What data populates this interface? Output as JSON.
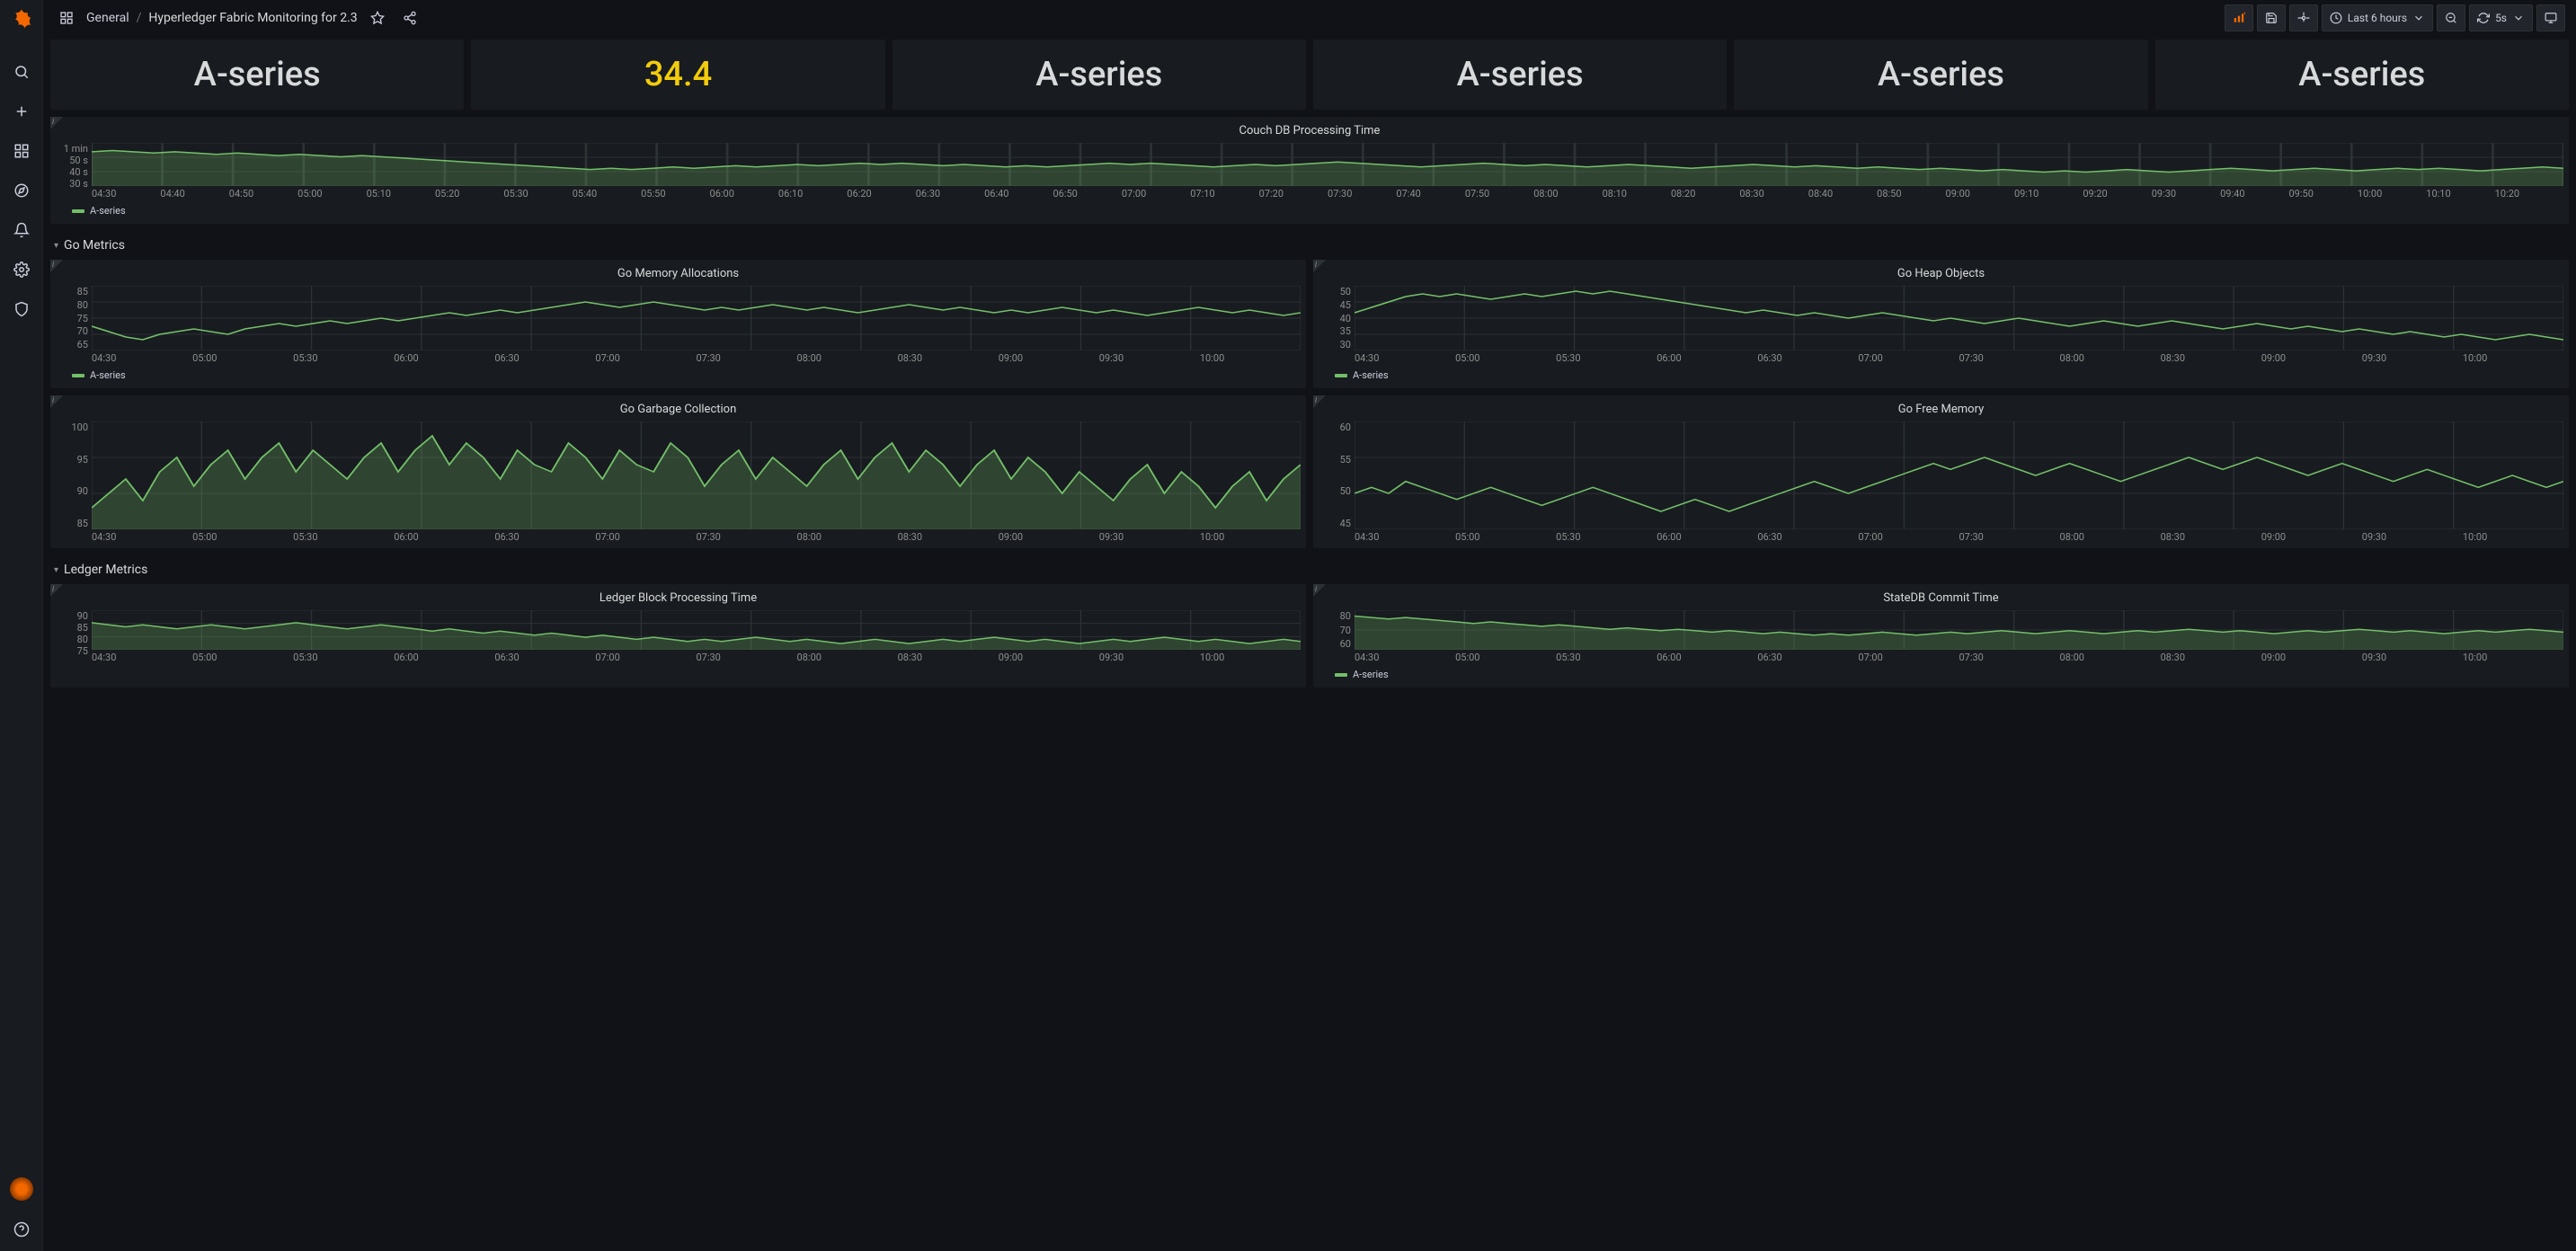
{
  "colors": {
    "series": "#73bf69",
    "seriesArea": "rgba(115,191,105,0.25)",
    "warn": "#f2cc0c"
  },
  "breadcrumb": {
    "folder": "General",
    "title": "Hyperledger Fabric Monitoring for 2.3"
  },
  "topbar": {
    "timeRange": "Last 6 hours",
    "refresh": "5s"
  },
  "stats": [
    {
      "value": "A-series",
      "warn": false
    },
    {
      "value": "34.4",
      "warn": true
    },
    {
      "value": "A-series",
      "warn": false
    },
    {
      "value": "A-series",
      "warn": false
    },
    {
      "value": "A-series",
      "warn": false
    },
    {
      "value": "A-series",
      "warn": false
    }
  ],
  "rowHeaders": {
    "go": "Go Metrics",
    "ledger": "Ledger Metrics"
  },
  "legend": {
    "label": "A-series"
  },
  "charts": {
    "couchdb": {
      "title": "Couch DB Processing Time",
      "height": 48,
      "yTicks": [
        "1 min",
        "50 s",
        "40 s",
        "30 s"
      ],
      "xTicks": [
        "04:30",
        "04:40",
        "04:50",
        "05:00",
        "05:10",
        "05:20",
        "05:30",
        "05:40",
        "05:50",
        "06:00",
        "06:10",
        "06:20",
        "06:30",
        "06:40",
        "06:50",
        "07:00",
        "07:10",
        "07:20",
        "07:30",
        "07:40",
        "07:50",
        "08:00",
        "08:10",
        "08:20",
        "08:30",
        "08:40",
        "08:50",
        "09:00",
        "09:10",
        "09:20",
        "09:30",
        "09:40",
        "09:50",
        "10:00",
        "10:10",
        "10:20"
      ],
      "yRange": [
        28,
        62
      ],
      "values": [
        55,
        56,
        55,
        54,
        55,
        54,
        53,
        54,
        53,
        52,
        53,
        52,
        51,
        52,
        51,
        50,
        49,
        48,
        47,
        46,
        45,
        44,
        43,
        42,
        41,
        42,
        41,
        42,
        43,
        42,
        43,
        44,
        43,
        44,
        45,
        44,
        45,
        46,
        45,
        46,
        45,
        44,
        45,
        44,
        43,
        44,
        43,
        44,
        45,
        46,
        45,
        46,
        45,
        44,
        43,
        44,
        45,
        44,
        45,
        46,
        47,
        46,
        45,
        44,
        43,
        44,
        45,
        46,
        45,
        44,
        45,
        44,
        43,
        44,
        45,
        44,
        43,
        42,
        43,
        44,
        45,
        44,
        43,
        44,
        43,
        42,
        43,
        42,
        41,
        42,
        41,
        40,
        41,
        40,
        39,
        40,
        39,
        40,
        41,
        40,
        39,
        40,
        41,
        42,
        41,
        40,
        41,
        42,
        41,
        40,
        41,
        42,
        41,
        42,
        41,
        40,
        41,
        42,
        43,
        42
      ],
      "area": true
    },
    "goMemAlloc": {
      "title": "Go Memory Allocations",
      "height": 72,
      "yTicks": [
        "85",
        "80",
        "75",
        "70",
        "65"
      ],
      "xTicks": [
        "04:30",
        "05:00",
        "05:30",
        "06:00",
        "06:30",
        "07:00",
        "07:30",
        "08:00",
        "08:30",
        "09:00",
        "09:30",
        "10:00"
      ],
      "yRange": [
        63,
        87
      ],
      "values": [
        72,
        70,
        68,
        67,
        69,
        70,
        71,
        70,
        69,
        71,
        72,
        73,
        72,
        73,
        74,
        73,
        74,
        75,
        74,
        75,
        76,
        77,
        76,
        77,
        78,
        77,
        78,
        79,
        80,
        81,
        80,
        79,
        80,
        81,
        80,
        79,
        78,
        79,
        78,
        79,
        80,
        79,
        78,
        79,
        78,
        77,
        78,
        79,
        80,
        79,
        78,
        79,
        78,
        77,
        78,
        77,
        78,
        79,
        78,
        77,
        78,
        77,
        76,
        77,
        78,
        79,
        78,
        77,
        78,
        77,
        76,
        77
      ],
      "area": false
    },
    "goHeap": {
      "title": "Go Heap Objects",
      "height": 72,
      "yTicks": [
        "50",
        "45",
        "40",
        "35",
        "30"
      ],
      "xTicks": [
        "04:30",
        "05:00",
        "05:30",
        "06:00",
        "06:30",
        "07:00",
        "07:30",
        "08:00",
        "08:30",
        "09:00",
        "09:30",
        "10:00"
      ],
      "yRange": [
        28,
        52
      ],
      "values": [
        42,
        44,
        46,
        48,
        49,
        48,
        49,
        48,
        47,
        48,
        49,
        48,
        49,
        50,
        49,
        50,
        49,
        48,
        47,
        46,
        45,
        44,
        43,
        42,
        43,
        42,
        41,
        42,
        41,
        40,
        41,
        42,
        41,
        40,
        39,
        40,
        39,
        38,
        39,
        40,
        39,
        38,
        37,
        38,
        39,
        38,
        37,
        38,
        39,
        38,
        37,
        36,
        37,
        38,
        37,
        36,
        37,
        36,
        35,
        36,
        35,
        34,
        35,
        34,
        33,
        34,
        33,
        32,
        33,
        34,
        33,
        32
      ],
      "area": false
    },
    "goGC": {
      "title": "Go Garbage Collection",
      "height": 120,
      "yTicks": [
        "100",
        "95",
        "90",
        "85"
      ],
      "xTicks": [
        "04:30",
        "05:00",
        "05:30",
        "06:00",
        "06:30",
        "07:00",
        "07:30",
        "08:00",
        "08:30",
        "09:00",
        "09:30",
        "10:00"
      ],
      "yRange": [
        85,
        100
      ],
      "values": [
        88,
        90,
        92,
        89,
        93,
        95,
        91,
        94,
        96,
        92,
        95,
        97,
        93,
        96,
        94,
        92,
        95,
        97,
        93,
        96,
        98,
        94,
        97,
        95,
        92,
        96,
        94,
        93,
        97,
        95,
        92,
        96,
        94,
        93,
        97,
        95,
        91,
        94,
        96,
        92,
        95,
        93,
        91,
        94,
        96,
        92,
        95,
        97,
        93,
        96,
        94,
        91,
        94,
        96,
        92,
        95,
        93,
        90,
        93,
        91,
        89,
        92,
        94,
        90,
        93,
        91,
        88,
        91,
        93,
        89,
        92,
        94
      ],
      "area": true
    },
    "goFreeMem": {
      "title": "Go Free Memory",
      "height": 120,
      "yTicks": [
        "60",
        "55",
        "50",
        "45"
      ],
      "xTicks": [
        "04:30",
        "05:00",
        "05:30",
        "06:00",
        "06:30",
        "07:00",
        "07:30",
        "08:00",
        "08:30",
        "09:00",
        "09:30",
        "10:00"
      ],
      "yRange": [
        44,
        62
      ],
      "values": [
        50,
        51,
        50,
        52,
        51,
        50,
        49,
        50,
        51,
        50,
        49,
        48,
        49,
        50,
        51,
        50,
        49,
        48,
        47,
        48,
        49,
        48,
        47,
        48,
        49,
        50,
        51,
        52,
        51,
        50,
        51,
        52,
        53,
        54,
        55,
        54,
        55,
        56,
        55,
        54,
        53,
        54,
        55,
        54,
        53,
        52,
        53,
        54,
        55,
        56,
        55,
        54,
        55,
        56,
        55,
        54,
        53,
        54,
        55,
        54,
        53,
        52,
        53,
        54,
        53,
        52,
        51,
        52,
        53,
        52,
        51,
        52
      ],
      "area": false
    },
    "ledgerBlock": {
      "title": "Ledger Block Processing Time",
      "height": 44,
      "yTicks": [
        "90",
        "85",
        "80",
        "75"
      ],
      "xTicks": [
        "04:30",
        "05:00",
        "05:30",
        "06:00",
        "06:30",
        "07:00",
        "07:30",
        "08:00",
        "08:30",
        "09:00",
        "09:30",
        "10:00"
      ],
      "yRange": [
        73,
        92
      ],
      "values": [
        86,
        85,
        84,
        85,
        84,
        83,
        84,
        85,
        84,
        83,
        84,
        85,
        86,
        85,
        84,
        83,
        84,
        85,
        84,
        83,
        82,
        83,
        82,
        81,
        82,
        81,
        80,
        81,
        80,
        79,
        80,
        79,
        78,
        79,
        78,
        77,
        78,
        77,
        78,
        79,
        78,
        77,
        78,
        77,
        76,
        77,
        78,
        77,
        76,
        77,
        78,
        77,
        78,
        79,
        78,
        77,
        78,
        77,
        76,
        77,
        78,
        77,
        78,
        79,
        78,
        77,
        78,
        77,
        76,
        77,
        78,
        77
      ],
      "area": true
    },
    "stateDB": {
      "title": "StateDB Commit Time",
      "height": 44,
      "yTicks": [
        "80",
        "70",
        "60"
      ],
      "xTicks": [
        "04:30",
        "05:00",
        "05:30",
        "06:00",
        "06:30",
        "07:00",
        "07:30",
        "08:00",
        "08:30",
        "09:00",
        "09:30",
        "10:00"
      ],
      "yRange": [
        55,
        82
      ],
      "values": [
        78,
        77,
        76,
        77,
        76,
        75,
        74,
        73,
        74,
        73,
        72,
        71,
        72,
        71,
        70,
        69,
        70,
        69,
        68,
        69,
        68,
        67,
        68,
        67,
        66,
        67,
        66,
        65,
        66,
        65,
        66,
        67,
        66,
        65,
        66,
        67,
        66,
        67,
        68,
        67,
        66,
        67,
        68,
        67,
        66,
        67,
        68,
        67,
        68,
        69,
        68,
        67,
        68,
        67,
        66,
        67,
        68,
        67,
        68,
        69,
        68,
        67,
        68,
        67,
        66,
        67,
        68,
        67,
        68,
        69,
        68,
        67
      ],
      "area": true
    }
  }
}
